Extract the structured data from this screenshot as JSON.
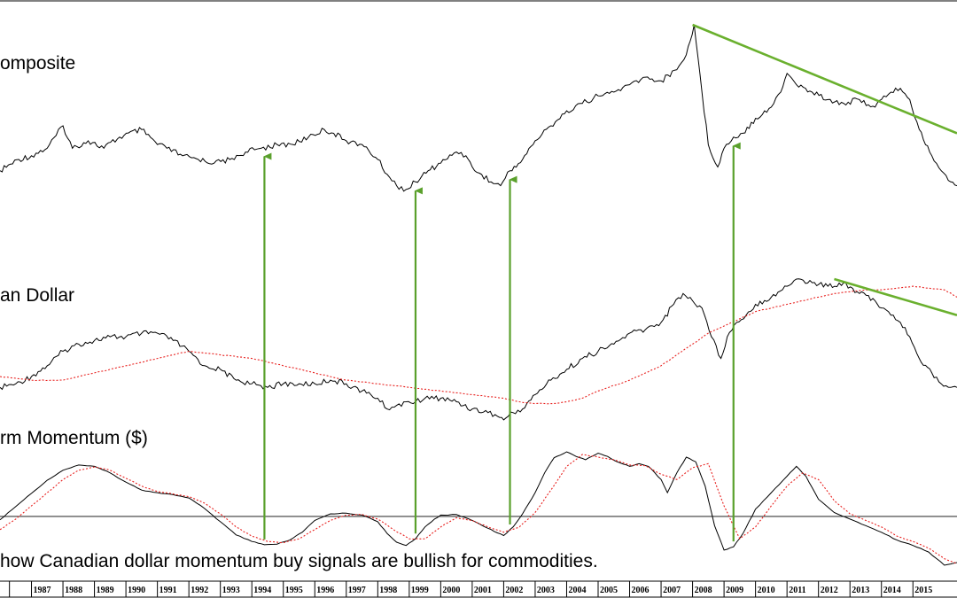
{
  "chart_data": {
    "type": "line",
    "caption": "how Canadian dollar momentum buy signals are bullish for commodities.",
    "x_axis": {
      "unit": "year",
      "range": [
        1986.0,
        2016.4
      ],
      "tick_labels": [
        "1987",
        "1988",
        "1989",
        "1990",
        "1991",
        "1992",
        "1993",
        "1994",
        "1995",
        "1996",
        "1997",
        "1998",
        "1999",
        "2000",
        "2001",
        "2002",
        "2003",
        "2004",
        "2005",
        "2006",
        "2007",
        "2008",
        "2009",
        "2010",
        "2011",
        "2012",
        "2013",
        "2014",
        "2015"
      ]
    },
    "panels": [
      {
        "id": "composite",
        "title": "omposite",
        "series": [
          {
            "name": "",
            "color": "#000000",
            "style": "solid",
            "x": [
              1986.0,
              1986.6,
              1987.0,
              1987.5,
              1988.0,
              1988.3,
              1988.8,
              1989.3,
              1989.8,
              1990.5,
              1991.0,
              1991.3,
              1991.8,
              1992.3,
              1992.8,
              1993.3,
              1993.8,
              1994.3,
              1994.8,
              1995.3,
              1995.8,
              1996.3,
              1996.6,
              1997.0,
              1997.5,
              1998.0,
              1998.3,
              1998.6,
              1998.9,
              1999.2,
              1999.6,
              2000.0,
              2000.5,
              2000.8,
              2001.0,
              2001.3,
              2001.6,
              2001.9,
              2002.2,
              2002.6,
              2003.0,
              2003.5,
              2004.0,
              2004.5,
              2005.0,
              2005.5,
              2006.0,
              2006.5,
              2007.0,
              2007.5,
              2007.8,
              2008.05,
              2008.3,
              2008.5,
              2008.8,
              2009.0,
              2009.3,
              2009.6,
              2010.0,
              2010.5,
              2010.8,
              2011.0,
              2011.3,
              2011.8,
              2012.3,
              2012.8,
              2013.3,
              2013.8,
              2014.0,
              2014.3,
              2014.6,
              2014.9,
              2015.2,
              2015.6,
              2015.9,
              2016.2,
              2016.4
            ],
            "y": [
              41,
              44,
              45,
              47,
              53,
              47,
              49,
              47,
              50,
              52,
              48,
              47,
              45,
              44,
              43,
              44,
              46,
              47,
              48,
              48,
              50,
              52,
              51,
              49,
              48,
              44,
              40,
              37,
              36,
              38,
              41,
              43,
              46,
              45,
              42,
              40,
              38,
              37,
              41,
              44,
              49,
              53,
              57,
              59,
              61,
              62,
              64,
              66,
              65,
              68,
              72,
              80,
              62,
              48,
              42,
              47,
              50,
              51,
              55,
              58,
              62,
              67,
              64,
              62,
              60,
              59,
              60,
              58,
              60,
              62,
              63,
              60,
              52,
              45,
              41,
              38,
              37
            ]
          }
        ]
      },
      {
        "id": "dollar",
        "title": "an Dollar",
        "series": [
          {
            "name": "",
            "color": "#000000",
            "style": "solid",
            "x": [
              1986.0,
              1986.5,
              1987.0,
              1987.5,
              1988.0,
              1988.5,
              1989.0,
              1989.5,
              1990.0,
              1990.5,
              1991.0,
              1991.5,
              1992.0,
              1992.5,
              1993.0,
              1993.5,
              1994.0,
              1994.5,
              1995.0,
              1995.5,
              1996.0,
              1996.5,
              1997.0,
              1997.5,
              1998.0,
              1998.3,
              1998.6,
              1998.9,
              1999.2,
              1999.5,
              2000.0,
              2000.5,
              2001.0,
              2001.5,
              2001.8,
              2002.0,
              2002.3,
              2002.6,
              2003.0,
              2003.5,
              2004.0,
              2004.5,
              2005.0,
              2005.5,
              2006.0,
              2006.5,
              2007.0,
              2007.4,
              2007.7,
              2008.0,
              2008.3,
              2008.6,
              2008.9,
              2009.1,
              2009.4,
              2009.7,
              2010.0,
              2010.5,
              2011.0,
              2011.3,
              2011.8,
              2012.3,
              2012.8,
              2013.3,
              2013.8,
              2014.0,
              2014.3,
              2014.6,
              2014.9,
              2015.2,
              2015.6,
              2015.9,
              2016.2,
              2016.4
            ],
            "y": [
              0.72,
              0.73,
              0.75,
              0.78,
              0.82,
              0.84,
              0.85,
              0.86,
              0.86,
              0.87,
              0.87,
              0.85,
              0.82,
              0.78,
              0.77,
              0.74,
              0.73,
              0.72,
              0.73,
              0.73,
              0.73,
              0.74,
              0.73,
              0.71,
              0.69,
              0.66,
              0.67,
              0.68,
              0.68,
              0.69,
              0.69,
              0.68,
              0.66,
              0.65,
              0.64,
              0.63,
              0.65,
              0.66,
              0.7,
              0.74,
              0.77,
              0.8,
              0.82,
              0.84,
              0.87,
              0.88,
              0.9,
              0.95,
              0.98,
              0.96,
              0.94,
              0.86,
              0.8,
              0.86,
              0.9,
              0.92,
              0.95,
              0.97,
              1.0,
              1.02,
              1.01,
              1.0,
              1.01,
              0.98,
              0.96,
              0.94,
              0.92,
              0.9,
              0.86,
              0.8,
              0.76,
              0.73,
              0.72,
              0.72
            ]
          },
          {
            "name": "",
            "color": "#e8201e",
            "style": "dotted",
            "x": [
              1986.0,
              1987.0,
              1988.0,
              1989.0,
              1990.0,
              1991.0,
              1991.5,
              1992.0,
              1992.5,
              1993.0,
              1994.0,
              1995.0,
              1996.0,
              1997.0,
              1998.0,
              1999.0,
              2000.0,
              2001.0,
              2002.0,
              2002.5,
              2003.0,
              2003.5,
              2004.0,
              2004.5,
              2005.0,
              2006.0,
              2007.0,
              2008.0,
              2008.5,
              2009.0,
              2009.5,
              2010.0,
              2011.0,
              2012.0,
              2012.5,
              2013.0,
              2013.5,
              2014.0,
              2014.5,
              2015.0,
              2015.5,
              2016.0,
              2016.4
            ],
            "y": [
              0.75,
              0.74,
              0.74,
              0.76,
              0.78,
              0.8,
              0.81,
              0.82,
              0.815,
              0.81,
              0.8,
              0.78,
              0.76,
              0.74,
              0.73,
              0.72,
              0.71,
              0.7,
              0.69,
              0.68,
              0.675,
              0.675,
              0.68,
              0.69,
              0.71,
              0.74,
              0.78,
              0.84,
              0.87,
              0.89,
              0.91,
              0.93,
              0.95,
              0.97,
              0.98,
              0.985,
              0.99,
              0.99,
              0.995,
              1.0,
              0.995,
              0.99,
              0.97
            ]
          }
        ]
      },
      {
        "id": "momentum",
        "title": "rm Momentum ($)",
        "zero_line": 0,
        "series": [
          {
            "name": "",
            "color": "#000000",
            "style": "solid",
            "x": [
              1986.0,
              1986.5,
              1987.0,
              1987.5,
              1988.0,
              1988.5,
              1989.0,
              1989.5,
              1990.0,
              1990.5,
              1991.0,
              1991.5,
              1992.0,
              1992.5,
              1993.0,
              1993.5,
              1994.0,
              1994.4,
              1994.8,
              1995.2,
              1995.6,
              1996.0,
              1996.5,
              1997.0,
              1997.5,
              1998.0,
              1998.3,
              1998.6,
              1998.9,
              1999.2,
              1999.5,
              1999.8,
              2000.0,
              2000.5,
              2001.0,
              2001.5,
              2001.8,
              2002.0,
              2002.3,
              2002.6,
              2003.0,
              2003.3,
              2003.6,
              2004.0,
              2004.3,
              2004.6,
              2005.0,
              2005.3,
              2005.6,
              2006.0,
              2006.3,
              2006.6,
              2007.0,
              2007.2,
              2007.5,
              2007.8,
              2008.1,
              2008.4,
              2008.7,
              2009.0,
              2009.3,
              2009.6,
              2010.0,
              2010.5,
              2011.0,
              2011.3,
              2011.6,
              2012.0,
              2012.5,
              2013.0,
              2013.5,
              2014.0,
              2014.5,
              2015.0,
              2015.5,
              2016.0,
              2016.4
            ],
            "y": [
              -0.5,
              1.5,
              3.5,
              5.5,
              7.0,
              7.8,
              7.6,
              6.6,
              5.2,
              4.0,
              3.6,
              3.3,
              2.8,
              1.2,
              -0.8,
              -2.8,
              -3.8,
              -4.3,
              -4.2,
              -3.6,
              -2.4,
              -0.6,
              0.4,
              0.5,
              0.2,
              -0.8,
              -2.6,
              -3.9,
              -4.4,
              -3.4,
              -1.6,
              -0.4,
              0.2,
              0.3,
              -0.6,
              -1.8,
              -2.5,
              -2.9,
              -1.6,
              0.4,
              3.6,
              6.6,
              8.9,
              9.8,
              9.1,
              8.6,
              9.6,
              9.1,
              8.3,
              7.6,
              8.0,
              7.6,
              5.6,
              3.6,
              6.6,
              9.0,
              8.3,
              4.6,
              -1.4,
              -5.1,
              -4.6,
              -2.6,
              1.1,
              3.6,
              6.1,
              7.6,
              6.1,
              2.6,
              0.6,
              -0.4,
              -1.4,
              -2.4,
              -3.6,
              -4.4,
              -5.4,
              -7.4,
              -7.0
            ]
          },
          {
            "name": "",
            "color": "#e8201e",
            "style": "dotted",
            "x": [
              1986.0,
              1986.5,
              1987.0,
              1987.5,
              1988.0,
              1988.5,
              1989.0,
              1989.5,
              1990.0,
              1990.5,
              1991.0,
              1991.5,
              1992.0,
              1992.5,
              1993.0,
              1993.5,
              1994.0,
              1994.5,
              1995.0,
              1995.5,
              1996.0,
              1996.5,
              1997.0,
              1997.5,
              1998.0,
              1998.5,
              1999.0,
              1999.5,
              2000.0,
              2000.5,
              2001.0,
              2001.5,
              2002.0,
              2002.5,
              2003.0,
              2003.5,
              2004.0,
              2004.5,
              2005.0,
              2005.5,
              2006.0,
              2006.5,
              2007.0,
              2007.5,
              2008.0,
              2008.5,
              2009.0,
              2009.5,
              2010.0,
              2010.5,
              2011.0,
              2011.5,
              2012.0,
              2012.5,
              2013.0,
              2013.5,
              2014.0,
              2014.5,
              2015.0,
              2015.5,
              2016.0,
              2016.4
            ],
            "y": [
              -2.0,
              -0.4,
              1.6,
              3.6,
              5.6,
              7.0,
              7.5,
              7.0,
              5.8,
              4.6,
              3.8,
              3.4,
              3.0,
              2.0,
              0.4,
              -1.6,
              -3.0,
              -3.8,
              -4.0,
              -3.4,
              -2.0,
              -0.6,
              0.2,
              0.3,
              -0.4,
              -2.0,
              -3.4,
              -3.4,
              -1.6,
              -0.2,
              -0.6,
              -1.6,
              -2.4,
              -1.6,
              0.6,
              4.0,
              7.6,
              9.4,
              9.0,
              8.6,
              7.8,
              7.7,
              6.4,
              5.6,
              7.4,
              8.0,
              1.6,
              -3.4,
              -1.6,
              1.6,
              4.6,
              6.6,
              5.6,
              2.4,
              0.4,
              -0.6,
              -1.6,
              -3.0,
              -3.8,
              -4.8,
              -6.4,
              -7.2
            ]
          }
        ]
      }
    ],
    "annotations": {
      "buy_signal_arrows": [
        1994.4,
        1999.2,
        2002.2,
        2009.3
      ],
      "trendlines": [
        {
          "panel": "composite",
          "from": [
            2008.0,
            80
          ],
          "to": [
            2016.4,
            51
          ]
        },
        {
          "panel": "dollar",
          "from": [
            2012.5,
            1.02
          ],
          "to": [
            2016.4,
            0.92
          ]
        }
      ],
      "colors": {
        "arrow": "#5aa02c",
        "trendline": "#6ab02e",
        "signal": "#e8201e"
      }
    }
  }
}
